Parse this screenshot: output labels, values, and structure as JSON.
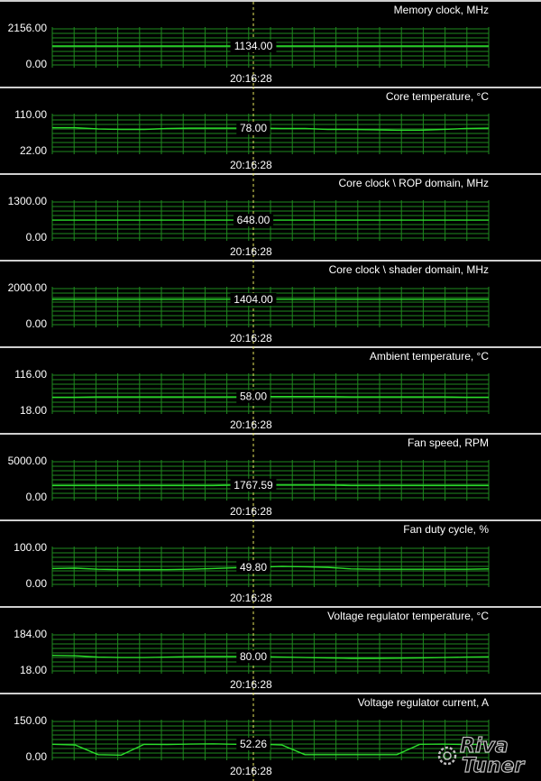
{
  "time_label": "20:16:28",
  "colors": {
    "grid": "#1f8a1f",
    "line": "#2bdc2b",
    "cursor": "#e6e65c",
    "separator": "#cfcfcf"
  },
  "logo": {
    "name": "rivatuner-logo",
    "text_line1": "Riva",
    "text_line2": "Tuner"
  },
  "chart_data": [
    {
      "type": "line",
      "title": "Memory clock, MHz",
      "ylim": [
        0,
        2156
      ],
      "ymax_label": "2156.00",
      "ymin_label": "0.00",
      "current_label": "1134.00",
      "values": [
        1134,
        1134,
        1134,
        1134,
        1134,
        1134,
        1134,
        1134,
        1134,
        1134,
        1134,
        1134,
        1134,
        1134,
        1134,
        1134,
        1134,
        1134,
        1134,
        1134
      ]
    },
    {
      "type": "line",
      "title": "Core temperature, °C",
      "ylim": [
        22,
        110
      ],
      "ymax_label": "110.00",
      "ymin_label": "22.00",
      "current_label": "78.00",
      "values": [
        80,
        80,
        77,
        76,
        76,
        78,
        79,
        79,
        79,
        79,
        78,
        78,
        76,
        76,
        75,
        74,
        74,
        76,
        78,
        79
      ]
    },
    {
      "type": "line",
      "title": "Core clock \\ ROP domain, MHz",
      "ylim": [
        0,
        1300
      ],
      "ymax_label": "1300.00",
      "ymin_label": "0.00",
      "current_label": "648.00",
      "values": [
        648,
        648,
        648,
        648,
        648,
        648,
        648,
        648,
        648,
        648,
        648,
        648,
        648,
        648,
        648,
        648,
        648,
        648,
        648,
        648
      ]
    },
    {
      "type": "line",
      "title": "Core clock \\ shader domain, MHz",
      "ylim": [
        0,
        2000
      ],
      "ymax_label": "2000.00",
      "ymin_label": "0.00",
      "current_label": "1404.00",
      "values": [
        1404,
        1404,
        1404,
        1404,
        1404,
        1404,
        1404,
        1404,
        1404,
        1404,
        1404,
        1404,
        1404,
        1404,
        1404,
        1404,
        1404,
        1404,
        1404,
        1404
      ]
    },
    {
      "type": "line",
      "title": "Ambient temperature, °C",
      "ylim": [
        18,
        116
      ],
      "ymax_label": "116.00",
      "ymin_label": "18.00",
      "current_label": "58.00",
      "values": [
        56,
        56,
        57,
        57,
        57,
        57,
        57,
        57,
        57,
        58,
        58,
        58,
        58,
        57,
        57,
        57,
        57,
        57,
        56,
        56
      ]
    },
    {
      "type": "line",
      "title": "Fan speed, RPM",
      "ylim": [
        0,
        5000
      ],
      "ymax_label": "5000.00",
      "ymin_label": "0.00",
      "current_label": "1767.59",
      "values": [
        1700,
        1700,
        1700,
        1700,
        1700,
        1700,
        1700,
        1700,
        1767,
        1767,
        1767,
        1767,
        1767,
        1700,
        1700,
        1700,
        1700,
        1700,
        1700,
        1700
      ]
    },
    {
      "type": "line",
      "title": "Fan duty cycle, %",
      "ylim": [
        0,
        100
      ],
      "ymax_label": "100.00",
      "ymin_label": "0.00",
      "current_label": "49.80",
      "values": [
        44,
        45,
        42,
        41,
        41,
        41,
        42,
        44,
        46,
        48,
        50,
        49,
        47,
        43,
        42,
        42,
        42,
        42,
        42,
        43
      ]
    },
    {
      "type": "line",
      "title": "Voltage regulator temperature, °C",
      "ylim": [
        18,
        184
      ],
      "ymax_label": "184.00",
      "ymin_label": "18.00",
      "current_label": "80.00",
      "values": [
        90,
        88,
        82,
        80,
        80,
        82,
        84,
        85,
        85,
        84,
        82,
        80,
        78,
        76,
        76,
        77,
        78,
        80,
        82,
        83
      ]
    },
    {
      "type": "line",
      "title": "Voltage regulator current, A",
      "ylim": [
        0,
        150
      ],
      "ymax_label": "150.00",
      "ymin_label": "0.00",
      "current_label": "52.26",
      "values": [
        55,
        52,
        12,
        10,
        55,
        54,
        56,
        57,
        55,
        56,
        52,
        12,
        12,
        12,
        12,
        12,
        55,
        56,
        54,
        55
      ]
    }
  ]
}
